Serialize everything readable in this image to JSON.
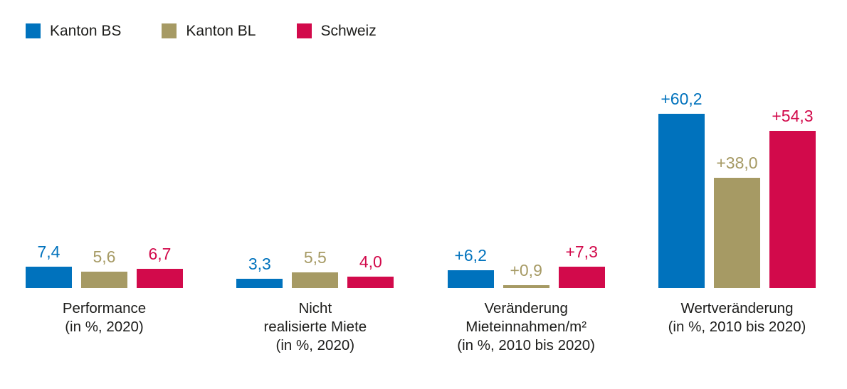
{
  "colors": {
    "kanton_bs": "#0072bd",
    "kanton_bl": "#a69a64",
    "schweiz": "#d20a4b",
    "text": "#1d1d1b",
    "background": "#ffffff"
  },
  "chart_data": {
    "type": "bar",
    "title": "",
    "xlabel": "",
    "ylabel": "",
    "ylim": [
      0,
      62
    ],
    "grid": false,
    "legend_position": "top-left",
    "categories": [
      [
        "Performance",
        "(in %, 2020)"
      ],
      [
        "Nicht",
        "realisierte Miete",
        "(in %, 2020)"
      ],
      [
        "Veränderung",
        "Mieteinnahmen/m²",
        "(in %, 2010 bis 2020)"
      ],
      [
        "Wertveränderung",
        "(in %, 2010 bis 2020)"
      ]
    ],
    "series": [
      {
        "name": "Kanton BS",
        "color": "#0072bd",
        "values": [
          7.4,
          3.3,
          6.2,
          60.2
        ],
        "labels": [
          "7,4",
          "3,3",
          "+6,2",
          "+60,2"
        ]
      },
      {
        "name": "Kanton BL",
        "color": "#a69a64",
        "values": [
          5.6,
          5.5,
          0.9,
          38.0
        ],
        "labels": [
          "5,6",
          "5,5",
          "+0,9",
          "+38,0"
        ]
      },
      {
        "name": "Schweiz",
        "color": "#d20a4b",
        "values": [
          6.7,
          4.0,
          7.3,
          54.3
        ],
        "labels": [
          "6,7",
          "4,0",
          "+7,3",
          "+54,3"
        ]
      }
    ]
  }
}
